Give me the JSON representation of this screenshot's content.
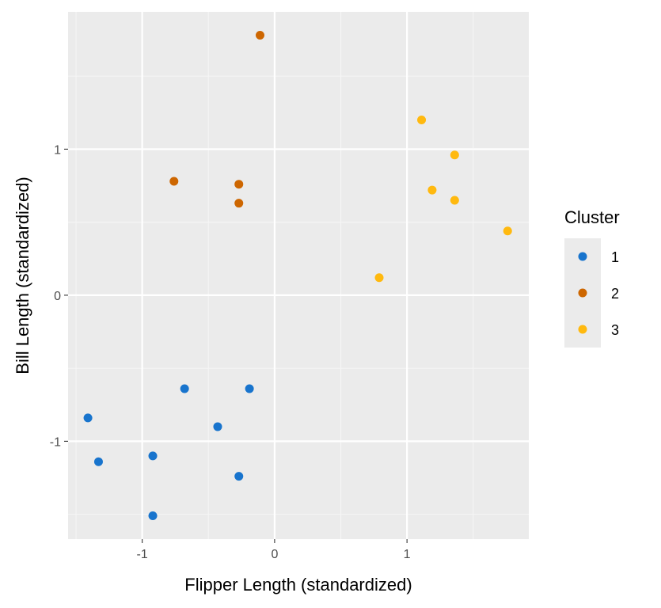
{
  "chart_data": {
    "type": "scatter",
    "title": "",
    "xlabel": "Flipper Length (standardized)",
    "ylabel": "Bill Length (standardized)",
    "xlim": [
      -1.56,
      1.92
    ],
    "ylim": [
      -1.67,
      1.94
    ],
    "x_ticks": [
      -1,
      0,
      1
    ],
    "y_ticks": [
      -1,
      0,
      1
    ],
    "grid": true,
    "legend": {
      "title": "Cluster",
      "placement": "right"
    },
    "series": [
      {
        "name": "1",
        "color": "#1874CD",
        "points": [
          {
            "x": -1.41,
            "y": -0.84
          },
          {
            "x": -1.33,
            "y": -1.14
          },
          {
            "x": -0.92,
            "y": -1.1
          },
          {
            "x": -0.92,
            "y": -1.51
          },
          {
            "x": -0.68,
            "y": -0.64
          },
          {
            "x": -0.43,
            "y": -0.9
          },
          {
            "x": -0.27,
            "y": -1.24
          },
          {
            "x": -0.19,
            "y": -0.64
          }
        ]
      },
      {
        "name": "2",
        "color": "#CD6600",
        "points": [
          {
            "x": -0.76,
            "y": 0.78
          },
          {
            "x": -0.27,
            "y": 0.76
          },
          {
            "x": -0.27,
            "y": 0.63
          },
          {
            "x": -0.11,
            "y": 1.78
          }
        ]
      },
      {
        "name": "3",
        "color": "#FFB90F",
        "points": [
          {
            "x": 0.79,
            "y": 0.12
          },
          {
            "x": 1.11,
            "y": 1.2
          },
          {
            "x": 1.19,
            "y": 0.72
          },
          {
            "x": 1.36,
            "y": 0.96
          },
          {
            "x": 1.36,
            "y": 0.65
          },
          {
            "x": 1.76,
            "y": 0.44
          }
        ]
      }
    ]
  }
}
